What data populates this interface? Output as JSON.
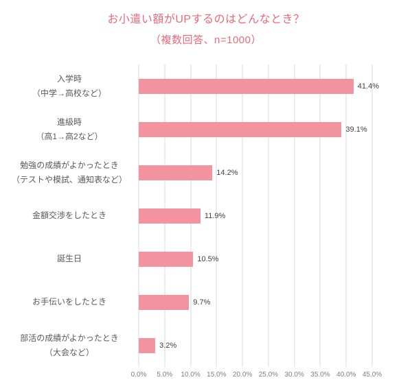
{
  "chart_data": {
    "type": "bar",
    "orientation": "horizontal",
    "title": "お小遣い額がUPするのはどんなとき？",
    "subtitle": "（複数回答、n=1000）",
    "categories": [
      [
        "入学時",
        "（中学→高校など）"
      ],
      [
        "進級時",
        "（高1→高2など）"
      ],
      [
        "勉強の成績がよかったとき",
        "（テストや模試、通知表など）"
      ],
      [
        "金額交渉をしたとき"
      ],
      [
        "誕生日"
      ],
      [
        "お手伝いをしたとき"
      ],
      [
        "部活の成績がよかったとき",
        "（大会など）"
      ]
    ],
    "values": [
      41.4,
      39.1,
      14.2,
      11.9,
      10.5,
      9.7,
      3.2
    ],
    "value_labels": [
      "41.4%",
      "39.1%",
      "14.2%",
      "11.9%",
      "10.5%",
      "9.7%",
      "3.2%"
    ],
    "xlabel": "",
    "ylabel": "",
    "xlim": [
      0,
      45
    ],
    "x_tick_values": [
      0,
      5,
      10,
      15,
      20,
      25,
      30,
      35,
      40,
      45
    ],
    "x_ticks": [
      "0.0%",
      "5.0%",
      "10.0%",
      "15.0%",
      "20.0%",
      "25.0%",
      "30.0%",
      "35.0%",
      "40.0%",
      "45.0%"
    ],
    "grid": true,
    "legend": "none",
    "colors": {
      "bar": "#F2939F",
      "title": "#E8697A",
      "label": "#595959",
      "value_label": "#404040",
      "tick_label": "#7F7F7F",
      "gridline": "#D9D9D9",
      "background": "#FFFFFF"
    }
  }
}
